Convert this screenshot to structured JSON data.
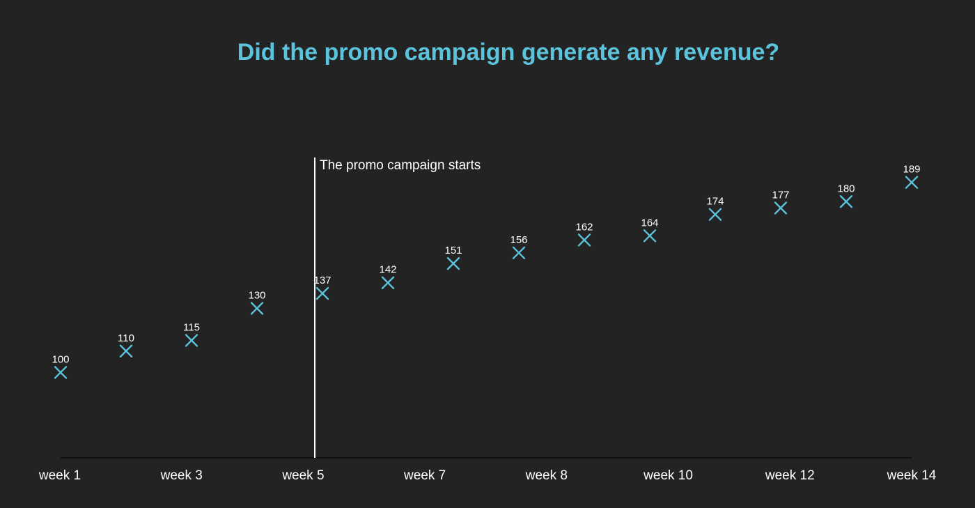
{
  "colors": {
    "background": "#232323",
    "accent": "#5bc4dc",
    "text": "#ffffff",
    "axis": "#111111"
  },
  "chart_data": {
    "type": "scatter",
    "title": "Did the promo campaign generate any revenue?",
    "xlabel": "",
    "ylabel": "",
    "marker": "x",
    "grid": false,
    "x_ticks": [
      "week 1",
      "week 3",
      "week 5",
      "week 7",
      "week 8",
      "week 10",
      "week 12",
      "week 14"
    ],
    "ylim": [
      60,
      200
    ],
    "points": [
      {
        "x": 1,
        "y": 100
      },
      {
        "x": 2,
        "y": 110
      },
      {
        "x": 3,
        "y": 115
      },
      {
        "x": 4,
        "y": 130
      },
      {
        "x": 5,
        "y": 137
      },
      {
        "x": 6,
        "y": 142
      },
      {
        "x": 7,
        "y": 151
      },
      {
        "x": 8,
        "y": 156
      },
      {
        "x": 9,
        "y": 162
      },
      {
        "x": 10,
        "y": 164
      },
      {
        "x": 11,
        "y": 174
      },
      {
        "x": 12,
        "y": 177
      },
      {
        "x": 13,
        "y": 180
      },
      {
        "x": 14,
        "y": 189
      }
    ],
    "annotation": {
      "x": 5,
      "text": "The promo campaign starts"
    }
  }
}
